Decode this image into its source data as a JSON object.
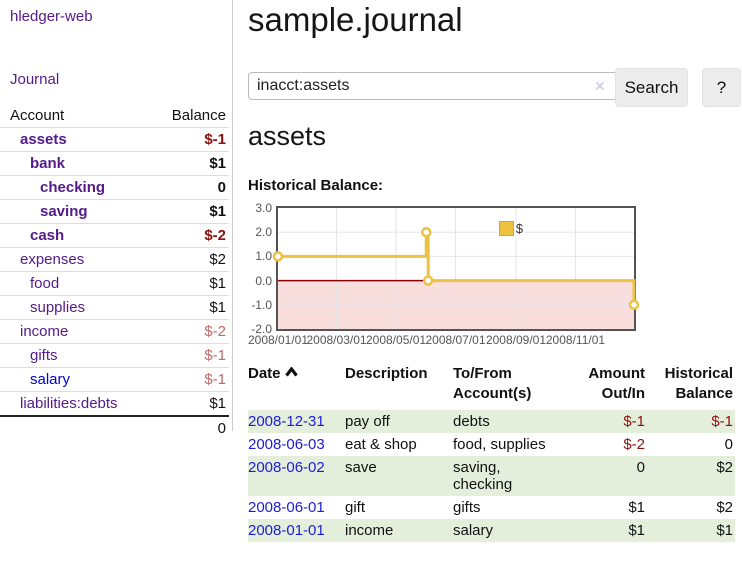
{
  "app": {
    "name": "hledger-web"
  },
  "sidebar": {
    "journal_link": "Journal",
    "account_header": "Account",
    "balance_header": "Balance",
    "accounts": [
      {
        "name": "assets",
        "balance": "$-1"
      },
      {
        "name": "bank",
        "balance": "$1"
      },
      {
        "name": "checking",
        "balance": "0"
      },
      {
        "name": "saving",
        "balance": "$1"
      },
      {
        "name": "cash",
        "balance": "$-2"
      },
      {
        "name": "expenses",
        "balance": "$2"
      },
      {
        "name": "food",
        "balance": "$1"
      },
      {
        "name": "supplies",
        "balance": "$1"
      },
      {
        "name": "income",
        "balance": "$-2"
      },
      {
        "name": "gifts",
        "balance": "$-1"
      },
      {
        "name": "salary",
        "balance": "$-1"
      },
      {
        "name": "liabilities:debts",
        "balance": "$1"
      }
    ],
    "total": "0"
  },
  "header": {
    "title": "sample.journal"
  },
  "search": {
    "value": "inacct:assets",
    "clear_icon": "✕",
    "search_button": "Search",
    "help_button": "?"
  },
  "account_page": {
    "heading": "assets",
    "chart_title": "Historical Balance:"
  },
  "chart_data": {
    "type": "line",
    "step": true,
    "title": "Historical Balance:",
    "legend_position": "top-right",
    "grid": true,
    "xlim": [
      "2008/01/01",
      "2008/12/31"
    ],
    "ylim": [
      -2,
      3
    ],
    "x_ticks": [
      "2008/01/01",
      "2008/03/01",
      "2008/05/01",
      "2008/07/01",
      "2008/09/01",
      "2008/11/01"
    ],
    "y_ticks": [
      "3.0",
      "2.0",
      "1.0",
      "0.0",
      "-1.0",
      "-2.0"
    ],
    "series": [
      {
        "name": "$",
        "color": "#EDC240",
        "points": [
          {
            "date": "2008/01/01",
            "value": 1
          },
          {
            "date": "2008/06/01",
            "value": 2
          },
          {
            "date": "2008/06/03",
            "value": 0
          },
          {
            "date": "2008/12/31",
            "value": -1
          }
        ]
      }
    ],
    "negative_fill": "#f9dede",
    "zero_line_color": "#8b0000",
    "grid_color": "#e6e6e6",
    "border_color": "#545454"
  },
  "register": {
    "columns": {
      "date": "Date",
      "description": "Description",
      "accounts": "To/From Account(s)",
      "amount": "Amount Out/In",
      "balance": "Historical Balance"
    },
    "rows": [
      {
        "date": "2008-12-31",
        "description": "pay off",
        "accounts": "debts",
        "amount": "$-1",
        "balance": "$-1"
      },
      {
        "date": "2008-06-03",
        "description": "eat & shop",
        "accounts": "food, supplies",
        "amount": "$-2",
        "balance": "0"
      },
      {
        "date": "2008-06-02",
        "description": "save",
        "accounts": "saving, checking",
        "amount": "0",
        "balance": "$2"
      },
      {
        "date": "2008-06-01",
        "description": "gift",
        "accounts": "gifts",
        "amount": "$1",
        "balance": "$2"
      },
      {
        "date": "2008-01-01",
        "description": "income",
        "accounts": "salary",
        "amount": "$1",
        "balance": "$1"
      }
    ]
  }
}
